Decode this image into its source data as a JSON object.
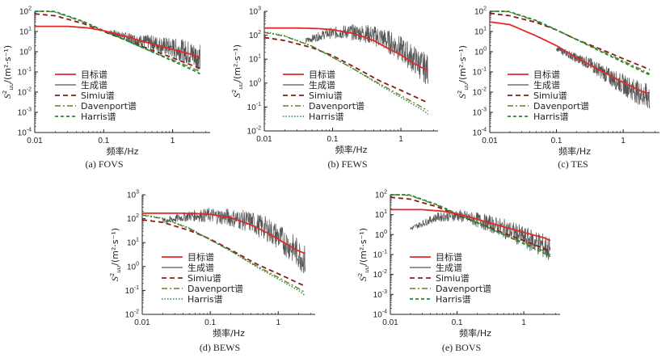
{
  "colors": {
    "target": "#e02a2a",
    "generated": "#555555",
    "simiu": "#8b1a1a",
    "davenport": "#6e7a1e",
    "harris": "#1d8a3a",
    "axis": "#222222"
  },
  "chart_data": [
    {
      "id": "fovs",
      "type": "line",
      "caption": "(a) FOVS",
      "xlabel": "频率/Hz",
      "ylabel_main": "S",
      "ylabel_sup": "2",
      "ylabel_sub": "uu",
      "ylabel_unit": "/(m²·s⁻¹)",
      "xlim": [
        0.01,
        3.5
      ],
      "ylim_exp": [
        -4,
        2
      ],
      "xticks": [
        "0.01",
        "0.1",
        "1"
      ],
      "legend": [
        "目标谱",
        "生成谱",
        "Simiu谱",
        "Davenport谱",
        "Harris谱"
      ],
      "series": [
        {
          "name": "目标谱",
          "style": "target",
          "x": [
            0.01,
            0.03,
            0.06,
            0.1,
            0.2,
            0.4,
            0.7,
            1,
            1.5,
            2,
            2.5
          ],
          "y": [
            18,
            18,
            15,
            11,
            6,
            3,
            1.8,
            1.3,
            0.9,
            0.7,
            0.5
          ]
        },
        {
          "name": "生成谱",
          "style": "generated",
          "noisy": true,
          "x": [
            0.12,
            0.2,
            0.3,
            0.5,
            0.8,
            1.2,
            1.8,
            2.5
          ],
          "y": [
            10,
            6,
            4,
            3,
            2,
            1.5,
            1,
            0.6
          ]
        },
        {
          "name": "Simiu谱",
          "style": "simiu",
          "x": [
            0.01,
            0.02,
            0.05,
            0.1,
            0.2,
            0.5,
            1,
            2,
            2.5
          ],
          "y": [
            75,
            60,
            25,
            10,
            4,
            1.2,
            0.5,
            0.2,
            0.15
          ]
        },
        {
          "name": "Davenport谱",
          "style": "davenport",
          "x": [
            0.01,
            0.02,
            0.05,
            0.1,
            0.2,
            0.5,
            1,
            2,
            2.5
          ],
          "y": [
            120,
            90,
            30,
            11,
            4,
            1,
            0.4,
            0.15,
            0.1
          ]
        },
        {
          "name": "Harris谱",
          "style": "harris",
          "x": [
            0.01,
            0.02,
            0.05,
            0.1,
            0.2,
            0.5,
            1,
            2,
            2.5
          ],
          "y": [
            130,
            95,
            32,
            11,
            4,
            1,
            0.35,
            0.12,
            0.08
          ]
        }
      ]
    },
    {
      "id": "fews",
      "type": "line",
      "caption": "(b) FEWS",
      "xlabel": "频率/Hz",
      "ylabel_main": "S",
      "ylabel_sup": "2",
      "ylabel_sub": "uu",
      "ylabel_unit": "/(m²·s⁻¹)",
      "xlim": [
        0.01,
        3.5
      ],
      "ylim_exp": [
        -2,
        3
      ],
      "xticks": [
        "0.01",
        "0.1",
        "1"
      ],
      "legend": [
        "目标谱",
        "生成谱",
        "Simiu谱",
        "Davenport谱",
        "Harris谱"
      ],
      "series": [
        {
          "name": "目标谱",
          "style": "target",
          "x": [
            0.01,
            0.03,
            0.06,
            0.1,
            0.2,
            0.4,
            0.7,
            1,
            1.5,
            2,
            2.5
          ],
          "y": [
            200,
            200,
            190,
            170,
            120,
            60,
            25,
            15,
            7,
            4.5,
            3.5
          ]
        },
        {
          "name": "生成谱",
          "style": "generated",
          "noisy": true,
          "x": [
            0.04,
            0.08,
            0.15,
            0.3,
            0.5,
            0.8,
            1.2,
            1.8,
            2.5
          ],
          "y": [
            60,
            120,
            150,
            130,
            90,
            45,
            20,
            8,
            4
          ]
        },
        {
          "name": "Simiu谱",
          "style": "simiu",
          "x": [
            0.01,
            0.02,
            0.05,
            0.1,
            0.2,
            0.5,
            1,
            2,
            2.5
          ],
          "y": [
            80,
            60,
            30,
            14,
            5,
            1.2,
            0.5,
            0.2,
            0.15
          ]
        },
        {
          "name": "Davenport谱",
          "style": "davenport",
          "x": [
            0.01,
            0.02,
            0.05,
            0.1,
            0.2,
            0.5,
            1,
            2,
            2.5
          ],
          "y": [
            130,
            90,
            35,
            12,
            4,
            0.9,
            0.3,
            0.1,
            0.07
          ]
        },
        {
          "name": "Harris谱",
          "style": "harris_dot",
          "x": [
            0.01,
            0.02,
            0.05,
            0.1,
            0.2,
            0.5,
            1,
            2,
            2.5
          ],
          "y": [
            140,
            95,
            35,
            12,
            4,
            0.8,
            0.25,
            0.08,
            0.05
          ]
        }
      ]
    },
    {
      "id": "tes",
      "type": "line",
      "caption": "(c) TES",
      "xlabel": "频率/Hz",
      "ylabel_main": "S",
      "ylabel_sup": "2",
      "ylabel_sub": "uu",
      "ylabel_unit": "/(m²·s⁻¹)",
      "xlim": [
        0.01,
        3.5
      ],
      "ylim_exp": [
        -4,
        2
      ],
      "xticks": [
        "0.01",
        "0.1",
        "1"
      ],
      "legend": [
        "目标谱",
        "生成谱",
        "Simiu谱",
        "Davenport谱",
        "Harris谱"
      ],
      "series": [
        {
          "name": "目标谱",
          "style": "target",
          "x": [
            0.01,
            0.02,
            0.05,
            0.1,
            0.2,
            0.5,
            1,
            2,
            2.5
          ],
          "y": [
            30,
            22,
            6,
            2,
            0.5,
            0.1,
            0.03,
            0.01,
            0.009
          ]
        },
        {
          "name": "生成谱",
          "style": "generated",
          "noisy": true,
          "x": [
            0.1,
            0.2,
            0.3,
            0.5,
            0.8,
            1.2,
            1.8,
            2.5
          ],
          "y": [
            1.5,
            0.5,
            0.3,
            0.1,
            0.04,
            0.02,
            0.01,
            0.006
          ]
        },
        {
          "name": "Simiu谱",
          "style": "simiu",
          "x": [
            0.01,
            0.02,
            0.05,
            0.1,
            0.2,
            0.5,
            1,
            2,
            2.5
          ],
          "y": [
            80,
            60,
            28,
            12,
            4,
            1.2,
            0.45,
            0.18,
            0.13
          ]
        },
        {
          "name": "Davenport谱",
          "style": "davenport",
          "x": [
            0.01,
            0.02,
            0.05,
            0.1,
            0.2,
            0.5,
            1,
            2,
            2.5
          ],
          "y": [
            130,
            90,
            33,
            12,
            4,
            1,
            0.35,
            0.12,
            0.08
          ]
        },
        {
          "name": "Harris谱",
          "style": "harris",
          "x": [
            0.01,
            0.02,
            0.05,
            0.1,
            0.2,
            0.5,
            1,
            2,
            2.5
          ],
          "y": [
            140,
            95,
            35,
            12,
            4,
            0.9,
            0.3,
            0.1,
            0.07
          ]
        }
      ]
    },
    {
      "id": "bews",
      "type": "line",
      "caption": "(d) BEWS",
      "xlabel": "频率/Hz",
      "ylabel_main": "S",
      "ylabel_sup": "2",
      "ylabel_sub": "uu",
      "ylabel_unit": "/(m²·s⁻¹)",
      "xlim": [
        0.01,
        3.5
      ],
      "ylim_exp": [
        -2,
        3
      ],
      "xticks": [
        "0.01",
        "0.1",
        "1"
      ],
      "legend": [
        "目标谱",
        "生成谱",
        "Simiu谱",
        "Davenport谱",
        "Harris谱"
      ],
      "series": [
        {
          "name": "目标谱",
          "style": "target",
          "x": [
            0.01,
            0.03,
            0.06,
            0.1,
            0.2,
            0.4,
            0.7,
            1,
            1.5,
            2,
            2.5
          ],
          "y": [
            170,
            170,
            165,
            150,
            110,
            55,
            25,
            14,
            7,
            4.5,
            3.5
          ]
        },
        {
          "name": "生成谱",
          "style": "generated",
          "noisy": true,
          "x": [
            0.02,
            0.05,
            0.1,
            0.2,
            0.4,
            0.7,
            1,
            1.5,
            2,
            2.5
          ],
          "y": [
            80,
            140,
            150,
            120,
            80,
            40,
            20,
            8,
            4,
            2
          ]
        },
        {
          "name": "Simiu谱",
          "style": "simiu",
          "x": [
            0.01,
            0.02,
            0.05,
            0.1,
            0.2,
            0.5,
            1,
            2,
            2.5
          ],
          "y": [
            90,
            70,
            32,
            14,
            5,
            1.2,
            0.5,
            0.2,
            0.15
          ]
        },
        {
          "name": "Davenport谱",
          "style": "davenport",
          "x": [
            0.01,
            0.02,
            0.05,
            0.1,
            0.2,
            0.5,
            1,
            2,
            2.5
          ],
          "y": [
            140,
            100,
            38,
            13,
            4.5,
            1,
            0.35,
            0.12,
            0.08
          ]
        },
        {
          "name": "Harris谱",
          "style": "harris_dot",
          "x": [
            0.01,
            0.02,
            0.05,
            0.1,
            0.2,
            0.5,
            1,
            2,
            2.5
          ],
          "y": [
            150,
            105,
            40,
            13,
            4.5,
            0.9,
            0.3,
            0.1,
            0.06
          ]
        }
      ]
    },
    {
      "id": "bovs",
      "type": "line",
      "caption": "(e) BOVS",
      "xlabel": "频率/Hz",
      "ylabel_main": "S",
      "ylabel_sup": "2",
      "ylabel_sub": "uu",
      "ylabel_unit": "/(m²·s⁻¹)",
      "xlim": [
        0.01,
        3.5
      ],
      "ylim_exp": [
        -4,
        2
      ],
      "xticks": [
        "0.01",
        "0.1",
        "1"
      ],
      "legend": [
        "目标谱",
        "生成谱",
        "Simiu谱",
        "Davenport谱",
        "Harris谱"
      ],
      "series": [
        {
          "name": "目标谱",
          "style": "target",
          "x": [
            0.01,
            0.03,
            0.06,
            0.1,
            0.2,
            0.4,
            0.7,
            1,
            1.5,
            2,
            2.5
          ],
          "y": [
            18,
            18,
            15,
            11,
            6,
            3,
            1.8,
            1.3,
            0.9,
            0.7,
            0.5
          ]
        },
        {
          "name": "生成谱",
          "style": "generated",
          "noisy": true,
          "x": [
            0.02,
            0.05,
            0.1,
            0.2,
            0.4,
            0.7,
            1,
            1.5,
            2,
            2.5
          ],
          "y": [
            2,
            8,
            10,
            6,
            3,
            1.5,
            0.8,
            0.5,
            0.3,
            0.2
          ]
        },
        {
          "name": "Simiu谱",
          "style": "simiu",
          "x": [
            0.01,
            0.02,
            0.05,
            0.1,
            0.2,
            0.5,
            1,
            2,
            2.5
          ],
          "y": [
            75,
            60,
            25,
            10,
            4,
            1.2,
            0.5,
            0.2,
            0.15
          ]
        },
        {
          "name": "Davenport谱",
          "style": "davenport",
          "x": [
            0.01,
            0.02,
            0.05,
            0.1,
            0.2,
            0.5,
            1,
            2,
            2.5
          ],
          "y": [
            120,
            90,
            30,
            11,
            4,
            1,
            0.4,
            0.15,
            0.1
          ]
        },
        {
          "name": "Harris谱",
          "style": "harris",
          "x": [
            0.01,
            0.02,
            0.05,
            0.1,
            0.2,
            0.5,
            1,
            2,
            2.5
          ],
          "y": [
            130,
            95,
            32,
            11,
            4,
            1,
            0.35,
            0.12,
            0.08
          ]
        }
      ]
    }
  ]
}
